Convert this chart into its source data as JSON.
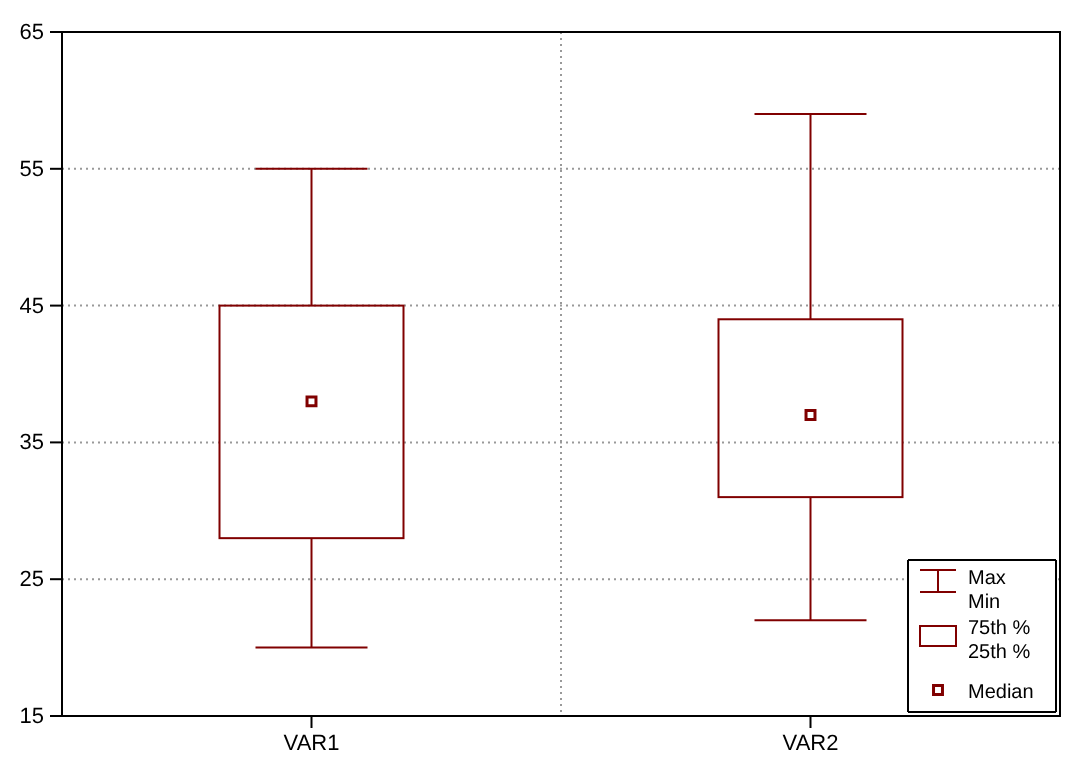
{
  "chart_data": {
    "type": "box",
    "categories": [
      "VAR1",
      "VAR2"
    ],
    "boxes": [
      {
        "low": 20,
        "q1": 28,
        "median": 38,
        "q3": 45,
        "high": 55
      },
      {
        "low": 22,
        "q1": 31,
        "median": 37,
        "q3": 44,
        "high": 59
      }
    ],
    "color": "#800000",
    "ylim": [
      15,
      65
    ],
    "yticks": [
      15,
      25,
      35,
      45,
      55,
      65
    ],
    "grid": true,
    "marker": "square",
    "annotations": [
      "Max",
      "Min",
      "75th %",
      "25th %",
      "Median"
    ]
  }
}
